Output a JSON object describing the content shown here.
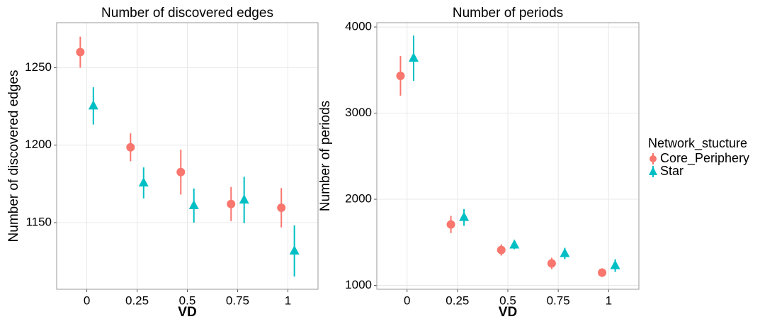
{
  "chart_data": [
    {
      "type": "scatter",
      "title": "Number of discovered edges",
      "x_label": "VD",
      "y_label": "Number of discovered edges",
      "x": [
        0,
        0.25,
        0.5,
        0.75,
        1
      ],
      "xlim": [
        -0.15,
        1.15
      ],
      "xticks": [
        0,
        0.25,
        0.5,
        0.75,
        1
      ],
      "ylim": [
        1107,
        1279
      ],
      "yticks": [
        1150,
        1200,
        1250
      ],
      "grid": true,
      "legend": "right",
      "legend_title": "Network_stucture",
      "series": [
        {
          "name": "Core_Periphery",
          "color": "#F8766D",
          "marker": "circle",
          "values": [
            1260,
            1198.6,
            1182.6,
            1162,
            1159.6
          ],
          "errors": [
            10,
            9,
            14.5,
            11,
            12.7
          ]
        },
        {
          "name": "Star",
          "color": "#00BFC4",
          "marker": "triangle",
          "values": [
            1225.3,
            1175.6,
            1161,
            1164.6,
            1131.7
          ],
          "errors": [
            12,
            10,
            11,
            15,
            16.5
          ]
        }
      ]
    },
    {
      "type": "scatter",
      "title": "Number of periods",
      "x_label": "VD",
      "y_label": "Number of periods",
      "x": [
        0,
        0.25,
        0.5,
        0.75,
        1
      ],
      "xlim": [
        -0.15,
        1.15
      ],
      "xticks": [
        0,
        0.25,
        0.5,
        0.75,
        1
      ],
      "ylim": [
        955,
        4050
      ],
      "yticks": [
        1000,
        2000,
        3000,
        4000
      ],
      "grid": true,
      "series": [
        {
          "color": "#F8766D",
          "marker": "circle",
          "values": [
            3433,
            1707,
            1411,
            1255,
            1148
          ],
          "errors": [
            230,
            100,
            65,
            66,
            50
          ]
        },
        {
          "color": "#00BFC4",
          "marker": "triangle",
          "values": [
            3638,
            1789,
            1469,
            1370,
            1230
          ],
          "errors": [
            263,
            98,
            50,
            66,
            74
          ]
        }
      ]
    }
  ]
}
